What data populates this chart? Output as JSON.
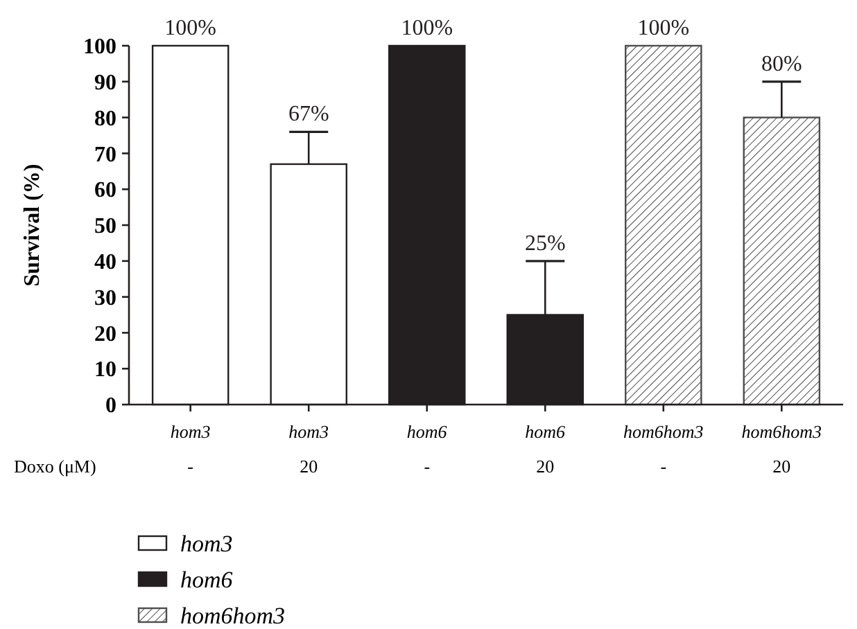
{
  "chart_data": {
    "type": "bar",
    "ylabel": "Survival (%)",
    "categories": [
      "hom3",
      "hom3",
      "hom6",
      "hom6",
      "hom6hom3",
      "hom6hom3"
    ],
    "series": [
      {
        "name": "hom3",
        "color": "#ffffff",
        "values": [
          100,
          67,
          null,
          null,
          null,
          null
        ],
        "value_labels": [
          "100%",
          "67%",
          null,
          null,
          null,
          null
        ],
        "errors": [
          null,
          [
            67,
            76
          ],
          null,
          null,
          null,
          null
        ]
      },
      {
        "name": "hom6",
        "color": "#231f20",
        "values": [
          null,
          null,
          100,
          25,
          null,
          null
        ],
        "value_labels": [
          null,
          null,
          "100%",
          "25%",
          null,
          null
        ],
        "errors": [
          null,
          null,
          null,
          [
            25,
            40
          ],
          null,
          null
        ]
      },
      {
        "name": "hom6hom3",
        "color": "#4d4d4d",
        "values": [
          null,
          null,
          null,
          null,
          100,
          80
        ],
        "value_labels": [
          null,
          null,
          null,
          null,
          "100%",
          "80%"
        ],
        "errors": [
          null,
          null,
          null,
          null,
          null,
          [
            80,
            90
          ]
        ]
      }
    ],
    "ylim": [
      0,
      100
    ],
    "yticks": [
      0,
      10,
      20,
      30,
      40,
      50,
      60,
      70,
      80,
      90,
      100
    ],
    "grid": false,
    "legend": "bottom left",
    "annotations": [
      "Doxo (μM)",
      "-",
      "20",
      "-",
      "20",
      "-",
      "20"
    ]
  }
}
